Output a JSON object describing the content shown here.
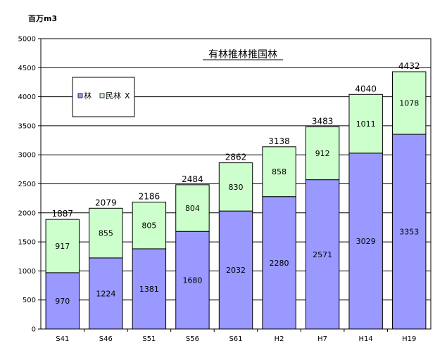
{
  "chart_data": {
    "type": "bar",
    "stacked": true,
    "title": "有林推林推国林",
    "ylabel": "百万m3",
    "ylim": [
      0,
      5000
    ],
    "yticks": [
      0,
      500,
      1000,
      1500,
      2000,
      2500,
      3000,
      3500,
      4000,
      4500,
      5000
    ],
    "grid": true,
    "categories": [
      "S41",
      "S46",
      "S51",
      "S56",
      "S61",
      "H2",
      "H7",
      "H14",
      "H19"
    ],
    "series": [
      {
        "name": "林",
        "color": "#9999ff",
        "values": [
          970,
          1224,
          1381,
          1680,
          2032,
          2280,
          2571,
          3029,
          3353
        ]
      },
      {
        "name": "民林",
        "color": "#ccffcc",
        "values": [
          917,
          855,
          805,
          804,
          830,
          858,
          912,
          1011,
          1078
        ]
      }
    ],
    "totals": [
      1887,
      2079,
      2186,
      2484,
      2862,
      3138,
      3483,
      4040,
      4432
    ],
    "legend": {
      "position": "top-left",
      "trailing_mark": "X"
    }
  }
}
